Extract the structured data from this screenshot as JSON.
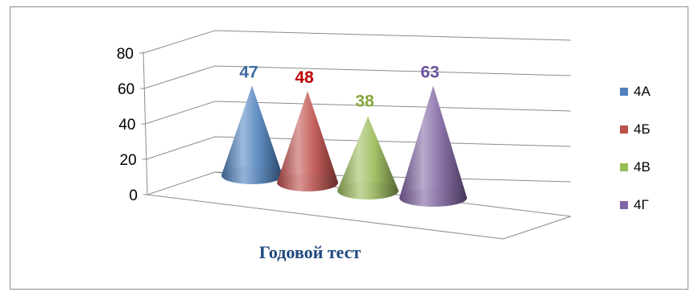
{
  "chart_data": {
    "type": "bar",
    "bar_shape": "cone-3d",
    "categories": [
      "4А",
      "4Б",
      "4В",
      "4Г"
    ],
    "values": [
      47,
      48,
      38,
      63
    ],
    "xlabel": "Годовой тест",
    "ylabel": "",
    "ylim": [
      0,
      80
    ],
    "yticks": [
      0,
      20,
      40,
      60,
      80
    ],
    "grid": true,
    "legend": "right",
    "data_labels": true,
    "colors": [
      "#4f81bd",
      "#c0504d",
      "#9bbb59",
      "#8064a2"
    ],
    "label_colors": [
      "#3e6aa0",
      "#c00000",
      "#86a83a",
      "#6b4f9a"
    ],
    "xlabel_color": "#1f497d"
  }
}
